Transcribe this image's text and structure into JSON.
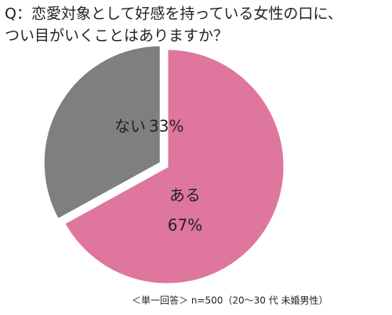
{
  "chart_data": {
    "type": "pie",
    "title": [
      "Q：恋愛対象として好感を持っている女性の口に、",
      "つい目がいくことはありますか？"
    ],
    "categories": [
      "ある",
      "ない"
    ],
    "values": [
      67,
      33
    ],
    "value_labels": [
      "67%",
      "33%"
    ],
    "colors": [
      "#df769e",
      "#7f7f7f"
    ],
    "note": "＜単一回答＞ n=500（20～30 代 未婚男性）"
  }
}
